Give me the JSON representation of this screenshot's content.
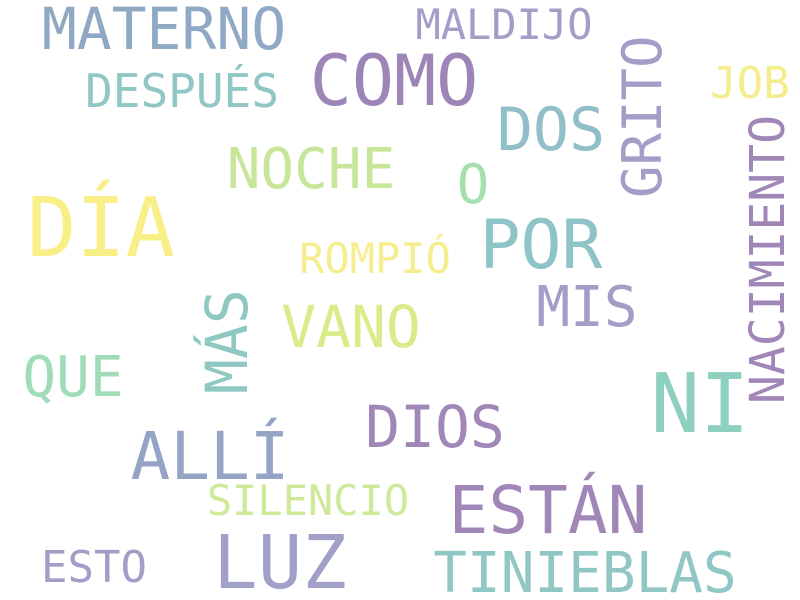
{
  "word_cloud": {
    "words": [
      {
        "id": "materno",
        "text": "MATERNO",
        "color": "#8fa9c4",
        "orientation": "horizontal"
      },
      {
        "id": "maldijo",
        "text": "MALDIJO",
        "color": "#a59cc8",
        "orientation": "horizontal"
      },
      {
        "id": "como",
        "text": "COMO",
        "color": "#9d85b8",
        "orientation": "horizontal"
      },
      {
        "id": "despues",
        "text": "DESPUÉS",
        "color": "#90c6c4",
        "orientation": "horizontal"
      },
      {
        "id": "job",
        "text": "JOB",
        "color": "#f3ed8c",
        "orientation": "horizontal"
      },
      {
        "id": "grito",
        "text": "GRITO",
        "color": "#a59cc8",
        "orientation": "vertical"
      },
      {
        "id": "dos",
        "text": "DOS",
        "color": "#90bfc9",
        "orientation": "horizontal"
      },
      {
        "id": "nacimiento",
        "text": "NACIMIENTO",
        "color": "#a087b8",
        "orientation": "vertical"
      },
      {
        "id": "noche",
        "text": "NOCHE",
        "color": "#c8e69a",
        "orientation": "horizontal"
      },
      {
        "id": "o",
        "text": "O",
        "color": "#a6dfae",
        "orientation": "horizontal"
      },
      {
        "id": "dia",
        "text": "DÍA",
        "color": "#f8ef87",
        "orientation": "horizontal"
      },
      {
        "id": "por",
        "text": "POR",
        "color": "#8ec3c8",
        "orientation": "horizontal"
      },
      {
        "id": "rompio",
        "text": "ROMPIÓ",
        "color": "#f6ee8e",
        "orientation": "horizontal"
      },
      {
        "id": "mis",
        "text": "MIS",
        "color": "#a59cc8",
        "orientation": "horizontal"
      },
      {
        "id": "mas",
        "text": "MÁS",
        "color": "#8ec8c0",
        "orientation": "vertical"
      },
      {
        "id": "vano",
        "text": "VANO",
        "color": "#d9ec8a",
        "orientation": "horizontal"
      },
      {
        "id": "que",
        "text": "QUE",
        "color": "#a0dcb8",
        "orientation": "horizontal"
      },
      {
        "id": "ni",
        "text": "NI",
        "color": "#8ed0c0",
        "orientation": "horizontal"
      },
      {
        "id": "dios",
        "text": "DIOS",
        "color": "#a087b8",
        "orientation": "horizontal"
      },
      {
        "id": "alli",
        "text": "ALLÍ",
        "color": "#95a3c4",
        "orientation": "horizontal"
      },
      {
        "id": "silencio",
        "text": "SILENCIO",
        "color": "#cfe99a",
        "orientation": "horizontal"
      },
      {
        "id": "estan",
        "text": "ESTÁN",
        "color": "#a087b8",
        "orientation": "horizontal"
      },
      {
        "id": "esto",
        "text": "ESTO",
        "color": "#a59cc8",
        "orientation": "horizontal"
      },
      {
        "id": "luz",
        "text": "LUZ",
        "color": "#a0a0c8",
        "orientation": "horizontal"
      },
      {
        "id": "tinieblas",
        "text": "TINIEBLAS",
        "color": "#90c6c4",
        "orientation": "horizontal"
      }
    ]
  }
}
